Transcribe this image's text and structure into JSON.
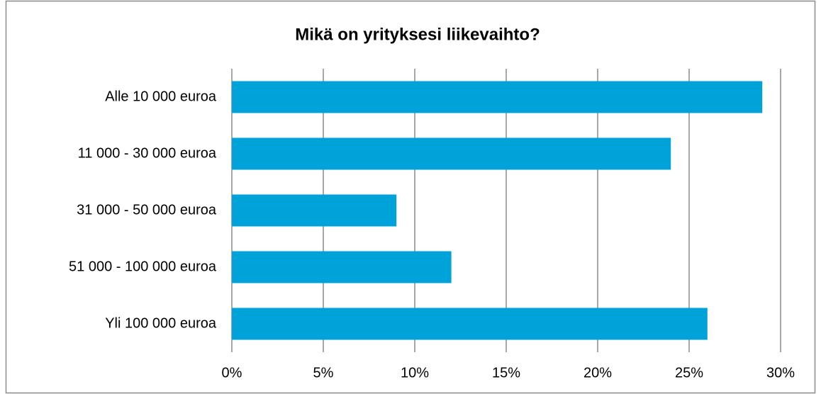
{
  "chart_data": {
    "type": "bar",
    "orientation": "horizontal",
    "title": "Mikä on yrityksesi liikevaihto?",
    "categories": [
      "Alle 10 000 euroa",
      "11 000 - 30 000 euroa",
      "31 000 - 50 000 euroa",
      "51 000 - 100 000 euroa",
      "Yli 100 000 euroa"
    ],
    "values": [
      29,
      24,
      9,
      12,
      26
    ],
    "color": "#00a3d9",
    "xlim": [
      0,
      30
    ],
    "xticks": [
      {
        "value": 0,
        "label": "0%"
      },
      {
        "value": 5,
        "label": "5%"
      },
      {
        "value": 10,
        "label": "10%"
      },
      {
        "value": 15,
        "label": "15%"
      },
      {
        "value": 20,
        "label": "20%"
      },
      {
        "value": 25,
        "label": "25%"
      },
      {
        "value": 30,
        "label": "30%"
      }
    ],
    "grid": true
  }
}
